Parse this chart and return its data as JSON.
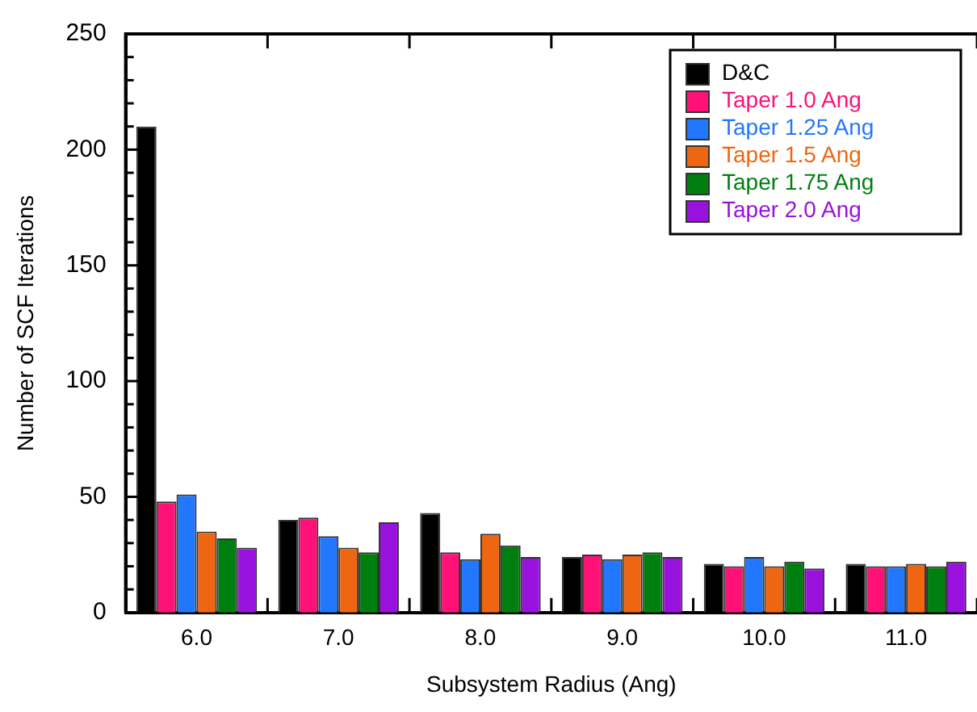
{
  "chart_data": {
    "type": "bar",
    "xlabel": "Subsystem Radius (Ang)",
    "ylabel": "Number of SCF Iterations",
    "categories": [
      "6.0",
      "7.0",
      "8.0",
      "9.0",
      "10.0",
      "11.0"
    ],
    "series": [
      {
        "name": "D&C",
        "color": "#000000",
        "values": [
          210,
          40,
          43,
          24,
          21,
          21
        ]
      },
      {
        "name": "Taper 1.0 Ang",
        "color": "#ff1177",
        "values": [
          48,
          41,
          26,
          25,
          20,
          20
        ]
      },
      {
        "name": "Taper 1.25 Ang",
        "color": "#2277ff",
        "values": [
          51,
          33,
          23,
          23,
          24,
          20
        ]
      },
      {
        "name": "Taper 1.5 Ang",
        "color": "#ee6611",
        "values": [
          35,
          28,
          34,
          25,
          20,
          21
        ]
      },
      {
        "name": "Taper 1.75 Ang",
        "color": "#007f11",
        "values": [
          32,
          26,
          29,
          26,
          22,
          20
        ]
      },
      {
        "name": "Taper 2.0 Ang",
        "color": "#9911dd",
        "values": [
          28,
          39,
          24,
          24,
          19,
          22
        ]
      }
    ],
    "ylim": [
      0,
      250
    ],
    "yticks": [
      0,
      50,
      100,
      150,
      200,
      250
    ],
    "grid": false,
    "legend": "top right"
  }
}
